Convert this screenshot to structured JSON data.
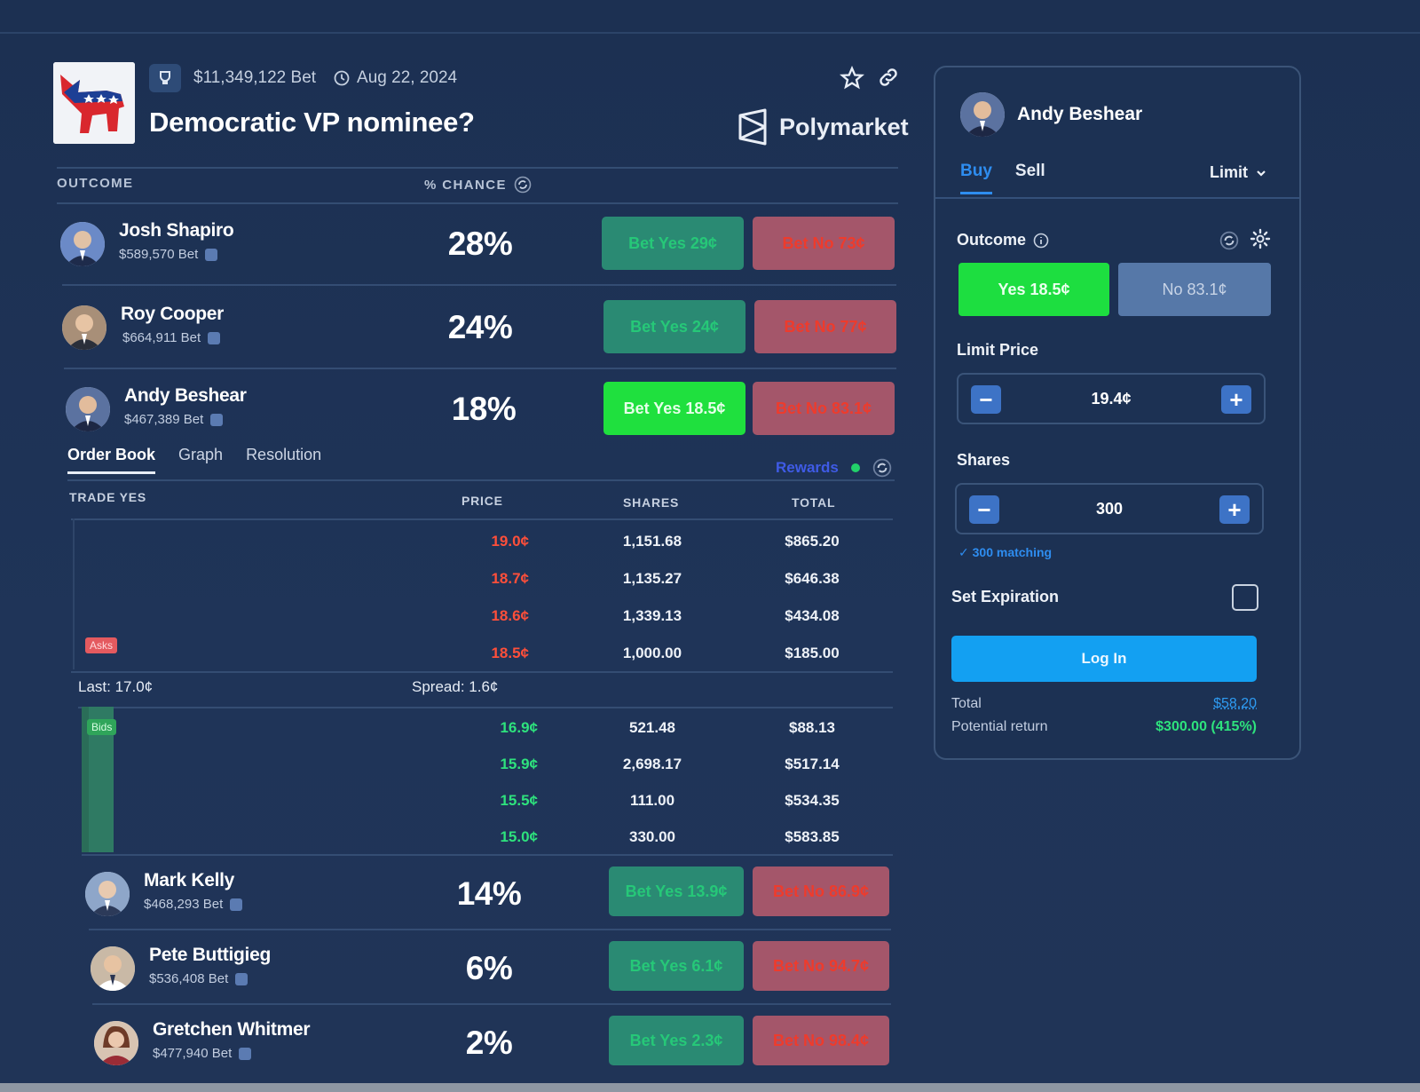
{
  "header": {
    "volume": "$11,349,122 Bet",
    "date": "Aug 22, 2024",
    "title": "Democratic VP nominee?",
    "brand": "Polymarket"
  },
  "columns": {
    "outcome": "OUTCOME",
    "chance": "% CHANCE"
  },
  "outcomes": [
    {
      "name": "Josh Shapiro",
      "volume": "$589,570 Bet",
      "chance": "28%",
      "yes": "Bet Yes 29¢",
      "no": "Bet No 73¢"
    },
    {
      "name": "Roy Cooper",
      "volume": "$664,911 Bet",
      "chance": "24%",
      "yes": "Bet Yes 24¢",
      "no": "Bet No 77¢"
    },
    {
      "name": "Andy Beshear",
      "volume": "$467,389 Bet",
      "chance": "18%",
      "yes": "Bet Yes 18.5¢",
      "no": "Bet No 83.1¢"
    },
    {
      "name": "Mark Kelly",
      "volume": "$468,293 Bet",
      "chance": "14%",
      "yes": "Bet Yes 13.9¢",
      "no": "Bet No 86.9¢"
    },
    {
      "name": "Pete Buttigieg",
      "volume": "$536,408 Bet",
      "chance": "6%",
      "yes": "Bet Yes 6.1¢",
      "no": "Bet No 94.7¢"
    },
    {
      "name": "Gretchen Whitmer",
      "volume": "$477,940 Bet",
      "chance": "2%",
      "yes": "Bet Yes 2.3¢",
      "no": "Bet No 98.4¢"
    }
  ],
  "orderbook": {
    "tabs": [
      "Order Book",
      "Graph",
      "Resolution"
    ],
    "rewards": "Rewards",
    "headers": {
      "side": "TRADE YES",
      "price": "PRICE",
      "shares": "SHARES",
      "total": "TOTAL"
    },
    "asks_tag": "Asks",
    "bids_tag": "Bids",
    "asks": [
      {
        "price": "19.0¢",
        "shares": "1,151.68",
        "total": "$865.20"
      },
      {
        "price": "18.7¢",
        "shares": "1,135.27",
        "total": "$646.38"
      },
      {
        "price": "18.6¢",
        "shares": "1,339.13",
        "total": "$434.08"
      },
      {
        "price": "18.5¢",
        "shares": "1,000.00",
        "total": "$185.00"
      }
    ],
    "last": "Last: 17.0¢",
    "spread": "Spread: 1.6¢",
    "bids": [
      {
        "price": "16.9¢",
        "shares": "521.48",
        "total": "$88.13"
      },
      {
        "price": "15.9¢",
        "shares": "2,698.17",
        "total": "$517.14"
      },
      {
        "price": "15.5¢",
        "shares": "111.00",
        "total": "$534.35"
      },
      {
        "price": "15.0¢",
        "shares": "330.00",
        "total": "$583.85"
      }
    ]
  },
  "panel": {
    "candidate": "Andy Beshear",
    "buy": "Buy",
    "sell": "Sell",
    "order_type": "Limit",
    "outcome_label": "Outcome",
    "yes": "Yes 18.5¢",
    "no": "No 83.1¢",
    "limit_label": "Limit Price",
    "limit_value": "19.4¢",
    "shares_label": "Shares",
    "shares_value": "300",
    "matching": "✓ 300 matching",
    "expiration_label": "Set Expiration",
    "login": "Log In",
    "total_label": "Total",
    "total_value": "$58.20",
    "return_label": "Potential return",
    "return_value": "$300.00 (415%)"
  },
  "colors": {
    "background": "#1d3154",
    "yes_button": "#2a8a73",
    "no_button": "#a4566a",
    "yes_active": "#1fe03e",
    "ask_price": "#ff4f3a",
    "bid_price": "#2ee27d",
    "login_button": "#13a0f2",
    "accent_blue": "#2e8df0"
  }
}
